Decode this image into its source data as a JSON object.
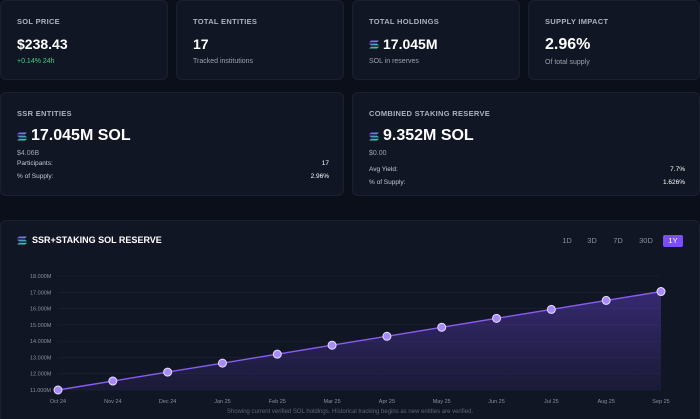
{
  "stats": {
    "sol_price": {
      "label": "SOL PRICE",
      "value": "$238.43",
      "change": "+0.14% 24h"
    },
    "total_entities": {
      "label": "TOTAL ENTITIES",
      "value": "17",
      "sub": "Tracked institutions"
    },
    "total_holdings": {
      "label": "TOTAL HOLDINGS",
      "value": "17.045M",
      "sub": "SOL in reserves"
    },
    "supply_impact": {
      "label": "SUPPLY IMPACT",
      "value": "2.96%",
      "sub": "Of total supply"
    }
  },
  "ssr": {
    "label": "SSR ENTITIES",
    "value": "17.045M SOL",
    "usd": "$4.06B",
    "rows": [
      {
        "k": "Participants:",
        "v": "17"
      },
      {
        "k": "% of Supply:",
        "v": "2.96%"
      }
    ]
  },
  "staking": {
    "label": "COMBINED STAKING RESERVE",
    "value": "9.352M SOL",
    "usd": "$0.00",
    "rows": [
      {
        "k": "Avg Yield:",
        "v": "7.7%"
      },
      {
        "k": "% of Supply:",
        "v": "1.626%"
      }
    ]
  },
  "chart_panel": {
    "title": "SSR+STAKING SOL RESERVE",
    "ranges": [
      "1D",
      "3D",
      "7D",
      "30D",
      "1Y"
    ],
    "active_range": "1Y",
    "footer": "Showing current verified SOL holdings. Historical tracking begins as new entities are verified."
  },
  "colors": {
    "accent": "#7c4dff",
    "line": "#8a5cf6",
    "green": "#3fd37f",
    "background": "#0b0f1a",
    "card": "#111624"
  },
  "chart_data": {
    "type": "area",
    "categories": [
      "Oct 24",
      "Nov 24",
      "Dec 24",
      "Jan 25",
      "Feb 25",
      "Mar 25",
      "Apr 25",
      "May 25",
      "Jun 25",
      "Jul 25",
      "Aug 25",
      "Sep 25"
    ],
    "series": [
      {
        "values": [
          11.0,
          11.55,
          12.1,
          12.65,
          13.2,
          13.75,
          14.3,
          14.85,
          15.4,
          15.95,
          16.5,
          17.045
        ]
      }
    ],
    "yticks": [
      "11.000M",
      "12.000M",
      "13.000M",
      "14.000M",
      "15.000M",
      "16.000M",
      "17.000M",
      "18.000M"
    ],
    "ylim": [
      11,
      18
    ],
    "grid": true,
    "legend": "none"
  }
}
